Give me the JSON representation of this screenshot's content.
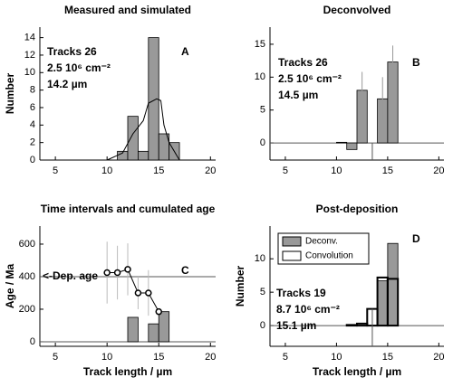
{
  "chart_data": [
    {
      "type": "histogram",
      "title": "Measured and simulated",
      "ylabel": "Number",
      "xlim": [
        3.5,
        20.5
      ],
      "xticks": [
        5,
        10,
        15,
        20
      ],
      "ylim": [
        0,
        15.2
      ],
      "yticks": [
        0,
        2,
        4,
        6,
        8,
        10,
        12,
        14
      ],
      "bins": [
        11,
        12,
        13,
        14,
        15,
        16,
        17
      ],
      "series": [
        {
          "color": "#999999",
          "values": [
            1,
            5,
            1,
            14,
            3,
            2
          ]
        }
      ],
      "line": {
        "x": [
          10,
          11.5,
          12.5,
          13.5,
          14,
          14.8,
          15.2,
          15.5,
          16,
          17
        ],
        "y": [
          0,
          0.8,
          3,
          4.5,
          6.5,
          7,
          6.8,
          4,
          2,
          0
        ]
      },
      "annotations": [
        "Tracks 26",
        "2.5 10⁶ cm⁻²",
        "14.2 µm"
      ],
      "panel_label": "A"
    },
    {
      "type": "histogram",
      "title": "Deconvolved",
      "xlim": [
        3.5,
        20.5
      ],
      "xticks": [
        5,
        10,
        15,
        20
      ],
      "ylim": [
        -2.6,
        17.6
      ],
      "yticks": [
        0,
        5,
        10,
        15
      ],
      "bins": [
        10,
        11,
        12,
        13,
        14,
        15,
        16
      ],
      "series": [
        {
          "color": "#999999",
          "values": [
            0.1,
            -1,
            8,
            null,
            6.7,
            12.3
          ],
          "errors": [
            null,
            null,
            2.8,
            null,
            3.3,
            2.5
          ]
        }
      ],
      "hlines": [
        0
      ],
      "vline": 13.5,
      "annotations": [
        "Tracks 26",
        "2.5 10⁶ cm⁻²",
        "14.5 µm"
      ],
      "panel_label": "B"
    },
    {
      "type": "histogram",
      "title": "Time intervals and cumulated age",
      "ylabel": "Age / Ma",
      "xlabel": "Track length /  µm",
      "xlim": [
        3.5,
        20.5
      ],
      "xticks": [
        5,
        10,
        15,
        20
      ],
      "ylim": [
        -28,
        711
      ],
      "yticks": [
        0,
        200,
        400,
        600
      ],
      "bins": [
        12,
        13,
        14,
        15,
        16
      ],
      "series": [
        {
          "color": "#999999",
          "values": [
            150,
            null,
            110,
            185
          ]
        }
      ],
      "points": {
        "x": [
          10,
          11,
          12,
          13,
          14,
          15
        ],
        "y": [
          425,
          425,
          445,
          300,
          300,
          185
        ],
        "errors": [
          190,
          165,
          160,
          100,
          140,
          15
        ]
      },
      "hlines": [
        0,
        400
      ],
      "hline_label": "<-Dep. age",
      "panel_label": "C"
    },
    {
      "type": "histogram",
      "title": "Post-deposition",
      "ylabel": "Number",
      "xlabel": "Track length /  µm",
      "xlim": [
        3.5,
        20.5
      ],
      "xticks": [
        5,
        10,
        15,
        20
      ],
      "ylim": [
        -3.1,
        14.9
      ],
      "yticks": [
        0,
        5,
        10
      ],
      "bins": [
        11,
        12,
        13,
        14,
        15,
        16
      ],
      "series": [
        {
          "name": "Deconv.",
          "color": "#999999",
          "filled": true,
          "values": [
            null,
            null,
            null,
            6.7,
            12.3
          ]
        },
        {
          "name": "Convolution",
          "color": "#ffffff",
          "filled": false,
          "values": [
            0.1,
            0.3,
            2.5,
            7.2,
            7.0
          ]
        }
      ],
      "hlines": [
        0
      ],
      "vline": 13.5,
      "legend": true,
      "annotations": [
        "Tracks 19",
        "8.7 10⁶ cm⁻²",
        "15.1 µm"
      ],
      "panel_label": "D"
    }
  ]
}
